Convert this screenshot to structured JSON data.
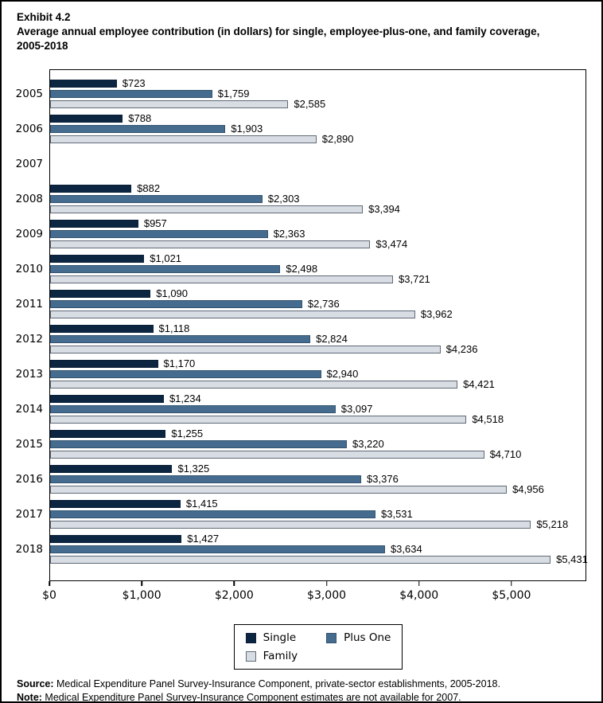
{
  "header": {
    "exhibit_label": "Exhibit 4.2",
    "title": "Average annual employee contribution (in dollars) for single, employee-plus-one, and family coverage, 2005-2018"
  },
  "chart_data": {
    "type": "bar",
    "orientation": "horizontal",
    "title": "Average annual employee contribution (in dollars) for single, employee-plus-one, and family coverage, 2005-2018",
    "xlabel": "",
    "ylabel": "",
    "categories": [
      "2005",
      "2006",
      "2007",
      "2008",
      "2009",
      "2010",
      "2011",
      "2012",
      "2013",
      "2014",
      "2015",
      "2016",
      "2017",
      "2018"
    ],
    "series": [
      {
        "name": "Single",
        "color": "#0c2642",
        "border_color": "#0a1f36",
        "values": [
          723,
          788,
          null,
          882,
          957,
          1021,
          1090,
          1118,
          1170,
          1234,
          1255,
          1325,
          1415,
          1427
        ]
      },
      {
        "name": "Plus One",
        "color": "#456c8e",
        "border_color": "#33536f",
        "values": [
          1759,
          1903,
          null,
          2303,
          2363,
          2498,
          2736,
          2824,
          2940,
          3097,
          3220,
          3376,
          3531,
          3634
        ]
      },
      {
        "name": "Family",
        "color": "#d8dde4",
        "border_color": "#5f6a76",
        "values": [
          2585,
          2890,
          null,
          3394,
          3474,
          3721,
          3962,
          4236,
          4421,
          4518,
          4710,
          4956,
          5218,
          5431
        ]
      }
    ],
    "value_label_prefix": "$",
    "xlim": [
      0,
      5810
    ],
    "x_ticks": [
      0,
      1000,
      2000,
      3000,
      4000,
      5000
    ],
    "x_tick_labels": [
      "$0",
      "$1,000",
      "$2,000",
      "$3,000",
      "$4,000",
      "$5,000"
    ],
    "grid": false,
    "legend_position": "bottom"
  },
  "legend": {
    "items": [
      {
        "label": "Single",
        "color": "#0c2642",
        "border_color": "#0a1f36"
      },
      {
        "label": "Plus One",
        "color": "#456c8e",
        "border_color": "#33536f"
      },
      {
        "label": "Family",
        "color": "#d8dde4",
        "border_color": "#5f6a76"
      }
    ]
  },
  "footer": {
    "source_prefix": "Source:",
    "source_text": " Medical Expenditure Panel Survey-Insurance Component, private-sector establishments, 2005-2018.",
    "note_prefix": "Note:",
    "note_text": " Medical Expenditure Panel Survey-Insurance Component estimates are not available for 2007."
  }
}
